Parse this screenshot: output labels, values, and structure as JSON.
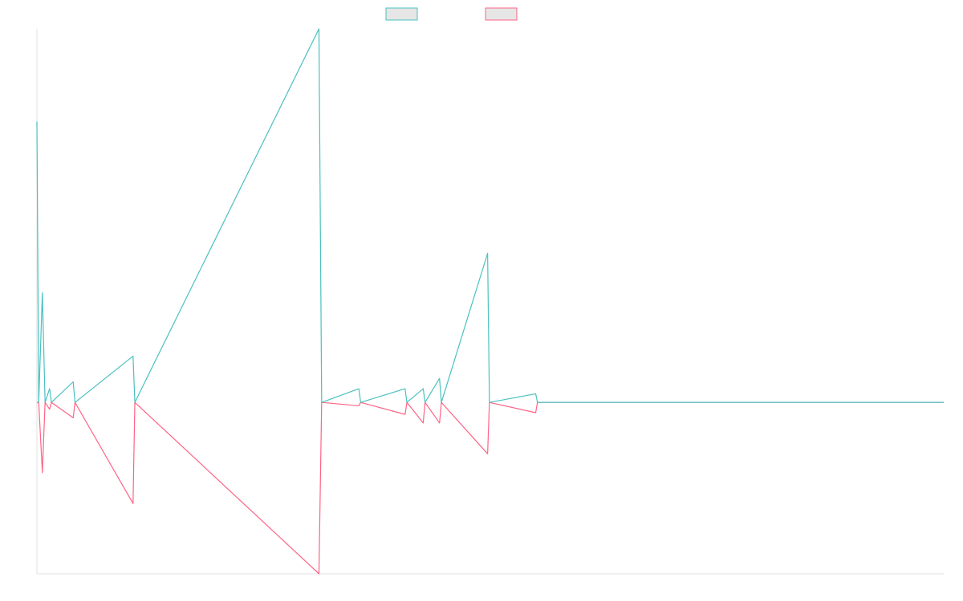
{
  "chart_data": {
    "type": "line",
    "title": "",
    "xlabel": "",
    "ylabel": "",
    "legend_position": "top-center",
    "grid": false,
    "x_range": [
      0,
      1000
    ],
    "ylim": [
      -1.0,
      2.18
    ],
    "series": [
      {
        "name": "",
        "color": "#4bc0c0",
        "fill": "#e6e6e6",
        "points": [
          [
            0,
            1.64
          ],
          [
            2,
            0.0
          ],
          [
            6,
            0.64
          ],
          [
            9,
            0.0
          ],
          [
            14,
            0.08
          ],
          [
            16,
            0.0
          ],
          [
            40,
            0.12
          ],
          [
            42,
            0.0
          ],
          [
            106,
            0.27
          ],
          [
            108,
            0.0
          ],
          [
            311,
            2.18
          ],
          [
            314,
            0.0
          ],
          [
            355,
            0.08
          ],
          [
            357,
            0.0
          ],
          [
            406,
            0.08
          ],
          [
            408,
            0.0
          ],
          [
            426,
            0.08
          ],
          [
            428,
            0.0
          ],
          [
            444,
            0.14
          ],
          [
            446,
            0.0
          ],
          [
            497,
            0.87
          ],
          [
            499,
            0.0
          ],
          [
            550,
            0.05
          ],
          [
            552,
            0.0
          ],
          [
            1000,
            0.0
          ]
        ]
      },
      {
        "name": "",
        "color": "#ff6384",
        "fill": "#e6e6e6",
        "points": [
          [
            0,
            0.0
          ],
          [
            2,
            0.0
          ],
          [
            6,
            -0.41
          ],
          [
            9,
            0.0
          ],
          [
            14,
            -0.04
          ],
          [
            16,
            0.0
          ],
          [
            40,
            -0.09
          ],
          [
            42,
            0.0
          ],
          [
            106,
            -0.59
          ],
          [
            108,
            0.0
          ],
          [
            311,
            -1.0
          ],
          [
            314,
            0.0
          ],
          [
            355,
            -0.02
          ],
          [
            357,
            0.0
          ],
          [
            406,
            -0.07
          ],
          [
            408,
            0.0
          ],
          [
            426,
            -0.12
          ],
          [
            428,
            0.0
          ],
          [
            444,
            -0.12
          ],
          [
            446,
            0.0
          ],
          [
            497,
            -0.3
          ],
          [
            499,
            0.0
          ],
          [
            550,
            -0.06
          ],
          [
            552,
            0.0
          ],
          [
            1000,
            0.0
          ]
        ]
      }
    ]
  }
}
